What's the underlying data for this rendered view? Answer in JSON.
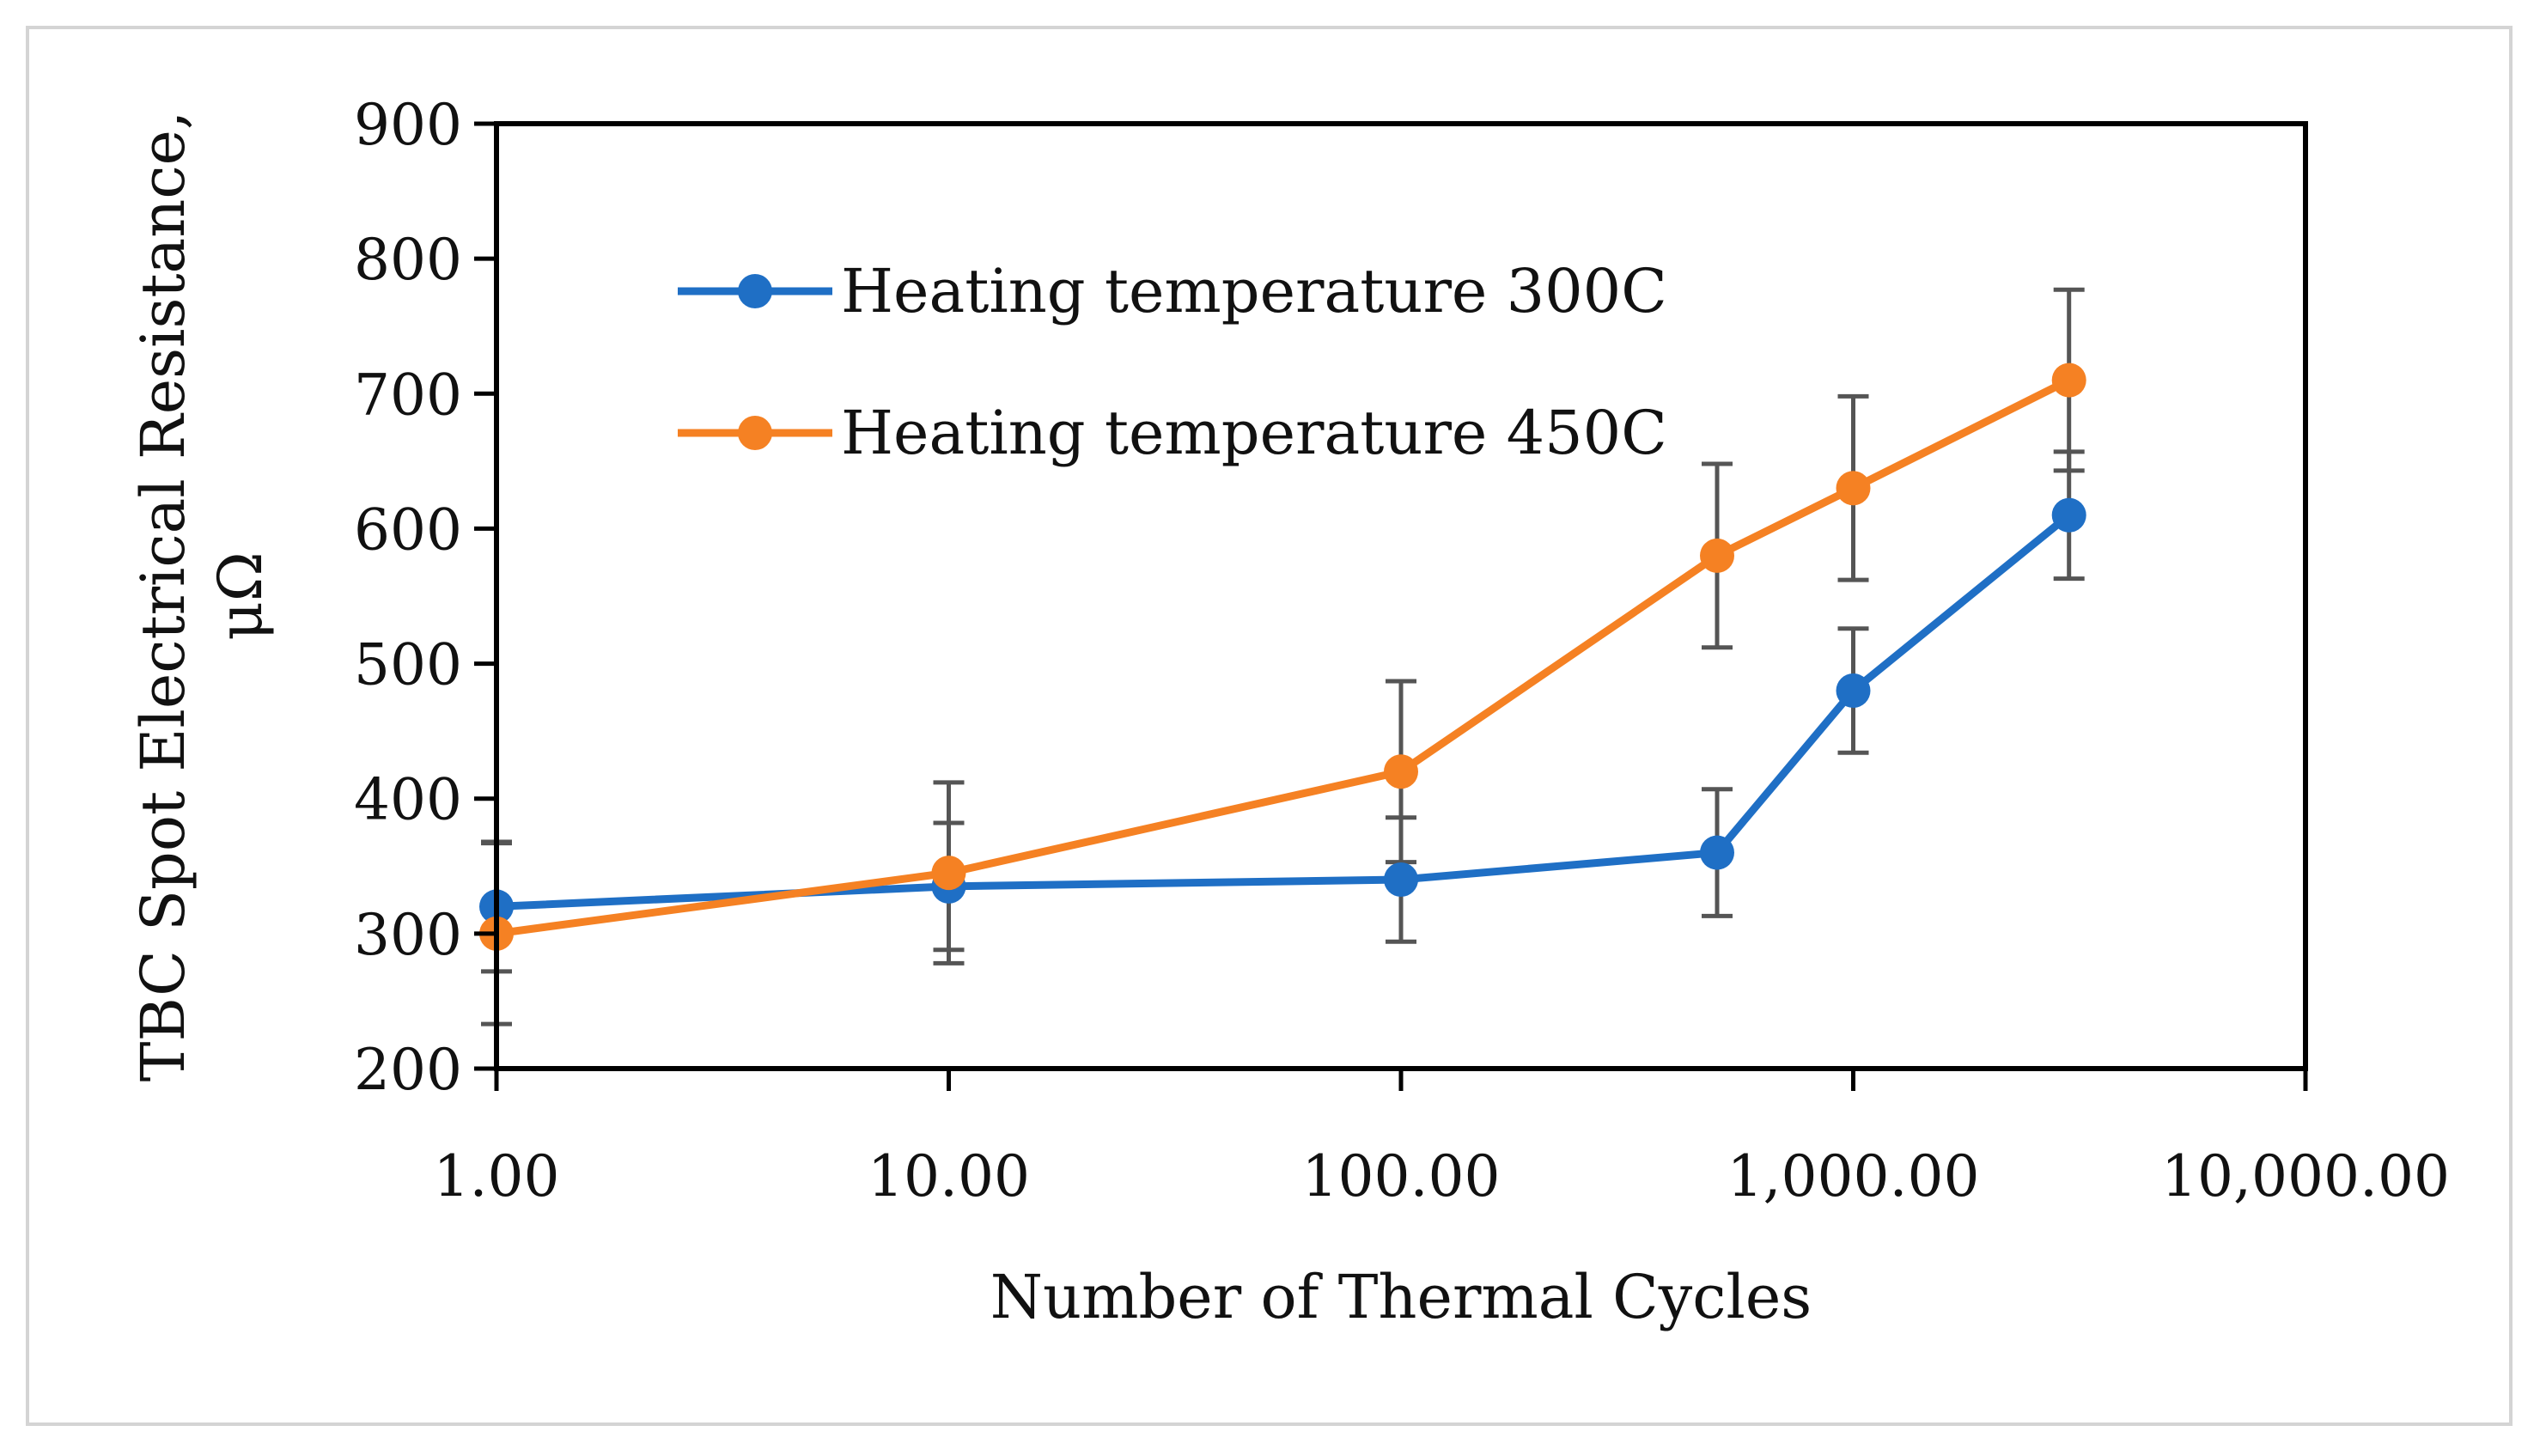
{
  "chart_data": {
    "type": "line",
    "title": "",
    "xlabel": "Number of Thermal Cycles",
    "ylabel_lines": [
      "TBC Spot Electrical Resistance,",
      "μΩ"
    ],
    "x_scale": "log",
    "xlim": [
      1,
      10000
    ],
    "ylim": [
      200,
      900
    ],
    "x_ticks": [
      1,
      10,
      100,
      1000,
      10000
    ],
    "x_tick_labels": [
      "1.00",
      "10.00",
      "100.00",
      "1,000.00",
      "10,000.00"
    ],
    "y_ticks": [
      200,
      300,
      400,
      500,
      600,
      700,
      800,
      900
    ],
    "y_tick_labels": [
      "200",
      "300",
      "400",
      "500",
      "600",
      "700",
      "800",
      "900"
    ],
    "grid": false,
    "legend_position": "top-left",
    "series": [
      {
        "name": "Heating temperature 300C",
        "color": "#1f6fc5",
        "x": [
          1,
          10,
          100,
          500,
          1000,
          3000
        ],
        "values": [
          320,
          335,
          340,
          360,
          480,
          610
        ],
        "error_low": [
          272,
          288,
          294,
          313,
          434,
          563
        ],
        "error_high": [
          368,
          382,
          386,
          407,
          526,
          657
        ]
      },
      {
        "name": "Heating temperature 450C",
        "color": "#f58123",
        "x": [
          1,
          10,
          100,
          500,
          1000,
          3000
        ],
        "values": [
          300,
          345,
          420,
          580,
          630,
          710
        ],
        "error_low": [
          233,
          278,
          353,
          512,
          562,
          643
        ],
        "error_high": [
          367,
          412,
          487,
          648,
          698,
          777
        ]
      }
    ],
    "error_bar_color": "#555555"
  }
}
